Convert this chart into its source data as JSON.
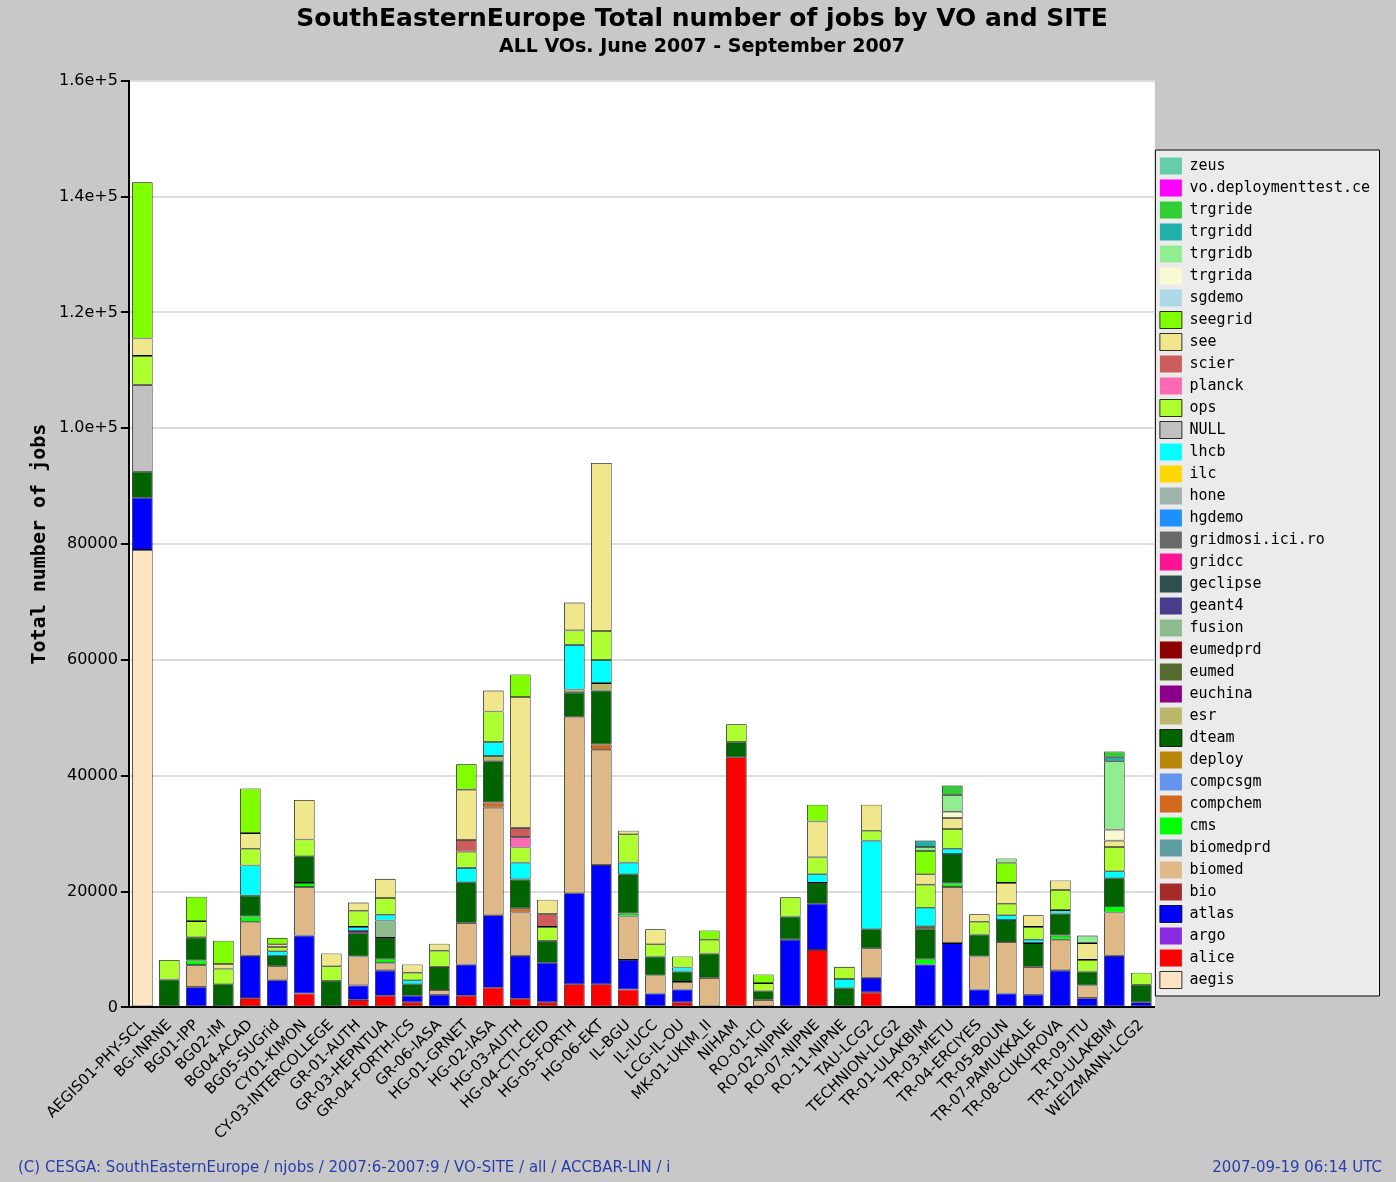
{
  "chart_data": {
    "type": "bar",
    "stacked": true,
    "title": "SouthEasternEurope Total number of jobs by VO and SITE",
    "subtitle": "ALL VOs. June 2007 - September 2007",
    "ylabel": "Total number of jobs",
    "categories": [
      "AEGIS01-PHY-SCL",
      "BG-INRNE",
      "BG01-IPP",
      "BG02-IM",
      "BG04-ACAD",
      "BG05-SUGrid",
      "CY01-KIMON",
      "CY-03-INTERCOLLEGE",
      "GR-01-AUTH",
      "GR-03-HEPNTUA",
      "GR-04-FORTH-ICS",
      "GR-06-IASA",
      "HG-01-GRNET",
      "HG-02-IASA",
      "HG-03-AUTH",
      "HG-04-CTI-CEID",
      "HG-05-FORTH",
      "HG-06-EKT",
      "IL-BGU",
      "IL-IUCC",
      "LCG-IL-OU",
      "MK-01-UKIM_II",
      "NIHAM",
      "RO-01-ICI",
      "RO-02-NIPNE",
      "RO-07-NIPNE",
      "RO-11-NIPNE",
      "TAU-LCG2",
      "TECHNION-LCG2",
      "TR-01-ULAKBIM",
      "TR-03-METU",
      "TR-04-ERCIYES",
      "TR-05-BOUN",
      "TR-07-PAMUKKALE",
      "TR-08-CUKUROVA",
      "TR-09-ITU",
      "TR-10-ULAKBIM",
      "WEIZMANN-LCG2"
    ],
    "series": [
      {
        "name": "aegis",
        "color": "#ffe4c4",
        "values": [
          79000,
          0,
          0,
          0,
          0,
          0,
          0,
          0,
          0,
          0,
          0,
          0,
          0,
          0,
          0,
          0,
          0,
          0,
          0,
          0,
          0,
          0,
          0,
          0,
          0,
          0,
          0,
          0,
          0,
          0,
          0,
          0,
          0,
          0,
          0,
          0,
          0,
          0
        ]
      },
      {
        "name": "alice",
        "color": "#ff0000",
        "values": [
          0,
          0,
          0,
          0,
          1600,
          0,
          2400,
          0,
          1300,
          2000,
          900,
          0,
          2000,
          3400,
          1500,
          900,
          4000,
          4000,
          3100,
          0,
          900,
          0,
          43200,
          0,
          0,
          9900,
          0,
          2600,
          0,
          0,
          0,
          0,
          0,
          0,
          0,
          0,
          0,
          0
        ]
      },
      {
        "name": "argo",
        "color": "#8a2be2",
        "values": [
          0,
          0,
          0,
          0,
          0,
          0,
          0,
          0,
          0,
          0,
          0,
          0,
          0,
          0,
          0,
          0,
          0,
          0,
          0,
          0,
          0,
          0,
          0,
          0,
          0,
          0,
          0,
          0,
          0,
          0,
          0,
          0,
          0,
          0,
          0,
          0,
          0,
          0
        ]
      },
      {
        "name": "atlas",
        "color": "#0000ff",
        "values": [
          9000,
          0,
          3500,
          0,
          7300,
          4700,
          10000,
          0,
          2500,
          4400,
          1100,
          2200,
          5400,
          12500,
          7400,
          6800,
          15700,
          20600,
          5100,
          2400,
          2200,
          0,
          0,
          0,
          11700,
          8000,
          0,
          2500,
          0,
          7400,
          11100,
          3100,
          2400,
          2200,
          6400,
          1600,
          8900,
          900
        ]
      },
      {
        "name": "bio",
        "color": "#a52a2a",
        "values": [
          0,
          0,
          0,
          0,
          0,
          0,
          0,
          0,
          0,
          0,
          0,
          0,
          0,
          0,
          0,
          0,
          0,
          0,
          0,
          0,
          0,
          0,
          0,
          0,
          0,
          0,
          0,
          0,
          0,
          0,
          0,
          0,
          0,
          0,
          0,
          0,
          0,
          0
        ]
      },
      {
        "name": "biomed",
        "color": "#deb887",
        "values": [
          0,
          0,
          3800,
          0,
          5900,
          2400,
          8400,
          0,
          5000,
          1300,
          0,
          800,
          7200,
          18600,
          7500,
          0,
          30500,
          19900,
          7500,
          3100,
          1300,
          5100,
          0,
          1300,
          0,
          0,
          0,
          5100,
          0,
          0,
          9700,
          5700,
          8900,
          4800,
          5300,
          2200,
          7500,
          0
        ]
      },
      {
        "name": "biomedprd",
        "color": "#5f9ea0",
        "values": [
          0,
          0,
          0,
          0,
          0,
          0,
          0,
          0,
          0,
          0,
          0,
          0,
          0,
          0,
          0,
          0,
          0,
          0,
          0,
          0,
          0,
          0,
          0,
          0,
          0,
          0,
          0,
          0,
          0,
          0,
          0,
          0,
          0,
          0,
          0,
          0,
          0,
          0
        ]
      },
      {
        "name": "cms",
        "color": "#00ff00",
        "values": [
          0,
          0,
          800,
          0,
          900,
          0,
          700,
          0,
          0,
          700,
          0,
          0,
          0,
          0,
          0,
          0,
          0,
          0,
          500,
          0,
          0,
          0,
          0,
          0,
          0,
          0,
          0,
          0,
          0,
          1000,
          600,
          0,
          0,
          0,
          700,
          0,
          1100,
          0
        ]
      },
      {
        "name": "compchem",
        "color": "#d2691e",
        "values": [
          0,
          0,
          0,
          0,
          0,
          0,
          0,
          0,
          0,
          0,
          0,
          0,
          0,
          900,
          700,
          0,
          0,
          900,
          0,
          0,
          0,
          0,
          0,
          0,
          0,
          0,
          0,
          0,
          0,
          0,
          0,
          0,
          0,
          0,
          0,
          0,
          0,
          0
        ]
      },
      {
        "name": "compcsgm",
        "color": "#6495ed",
        "values": [
          0,
          0,
          0,
          0,
          0,
          0,
          0,
          0,
          0,
          0,
          0,
          0,
          0,
          0,
          0,
          0,
          0,
          0,
          0,
          0,
          0,
          0,
          0,
          0,
          0,
          0,
          0,
          0,
          0,
          0,
          0,
          0,
          0,
          0,
          0,
          0,
          0,
          0
        ]
      },
      {
        "name": "deploy",
        "color": "#b8860b",
        "values": [
          0,
          0,
          0,
          0,
          0,
          0,
          0,
          0,
          0,
          0,
          0,
          0,
          0,
          0,
          0,
          0,
          0,
          0,
          0,
          0,
          0,
          0,
          0,
          0,
          0,
          0,
          0,
          0,
          0,
          0,
          0,
          0,
          0,
          0,
          0,
          0,
          0,
          0
        ]
      },
      {
        "name": "dteam",
        "color": "#006400",
        "values": [
          4500,
          4800,
          4000,
          4000,
          3600,
          1800,
          4600,
          4600,
          4000,
          3600,
          2000,
          4000,
          7000,
          7100,
          5000,
          3800,
          4200,
          9300,
          6800,
          3300,
          1800,
          4200,
          2600,
          1500,
          4000,
          3600,
          3300,
          3300,
          0,
          5100,
          5100,
          3800,
          3800,
          4100,
          3800,
          2400,
          4800,
          3000
        ]
      },
      {
        "name": "esr",
        "color": "#bdb76b",
        "values": [
          0,
          0,
          0,
          0,
          0,
          0,
          0,
          0,
          0,
          0,
          0,
          0,
          0,
          900,
          0,
          0,
          500,
          1300,
          0,
          0,
          0,
          0,
          0,
          0,
          0,
          0,
          0,
          0,
          0,
          0,
          0,
          0,
          0,
          0,
          0,
          0,
          0,
          0
        ]
      },
      {
        "name": "euchina",
        "color": "#8b008b",
        "values": [
          0,
          0,
          0,
          0,
          0,
          0,
          0,
          0,
          400,
          0,
          0,
          0,
          0,
          0,
          0,
          0,
          0,
          0,
          0,
          0,
          0,
          0,
          0,
          0,
          0,
          0,
          0,
          0,
          0,
          0,
          0,
          0,
          0,
          0,
          0,
          0,
          0,
          0
        ]
      },
      {
        "name": "eumed",
        "color": "#556b2f",
        "values": [
          0,
          0,
          0,
          0,
          0,
          0,
          0,
          0,
          0,
          0,
          0,
          0,
          0,
          0,
          0,
          0,
          0,
          0,
          0,
          0,
          0,
          0,
          0,
          0,
          0,
          0,
          0,
          0,
          0,
          500,
          0,
          0,
          0,
          0,
          0,
          0,
          0,
          0
        ]
      },
      {
        "name": "eumedprd",
        "color": "#8b0000",
        "values": [
          0,
          0,
          0,
          0,
          0,
          0,
          0,
          0,
          0,
          0,
          0,
          0,
          0,
          0,
          0,
          0,
          0,
          0,
          0,
          0,
          0,
          0,
          0,
          0,
          0,
          0,
          0,
          0,
          0,
          0,
          0,
          0,
          0,
          0,
          0,
          0,
          0,
          0
        ]
      },
      {
        "name": "fusion",
        "color": "#8fbc8f",
        "values": [
          0,
          0,
          0,
          0,
          0,
          0,
          0,
          0,
          0,
          3000,
          0,
          0,
          0,
          0,
          0,
          0,
          0,
          0,
          0,
          0,
          0,
          0,
          0,
          0,
          0,
          0,
          0,
          0,
          0,
          0,
          0,
          0,
          0,
          0,
          0,
          0,
          0,
          0
        ]
      },
      {
        "name": "geant4",
        "color": "#483d8b",
        "values": [
          0,
          0,
          0,
          0,
          0,
          0,
          0,
          0,
          0,
          0,
          0,
          0,
          0,
          0,
          0,
          0,
          0,
          0,
          0,
          0,
          0,
          0,
          0,
          0,
          0,
          0,
          0,
          0,
          0,
          0,
          0,
          0,
          0,
          0,
          0,
          0,
          0,
          0
        ]
      },
      {
        "name": "geclipse",
        "color": "#2f4f4f",
        "values": [
          0,
          0,
          0,
          0,
          0,
          0,
          0,
          0,
          0,
          0,
          0,
          0,
          0,
          0,
          0,
          0,
          0,
          0,
          0,
          0,
          0,
          0,
          0,
          0,
          0,
          0,
          0,
          0,
          0,
          0,
          0,
          0,
          0,
          0,
          0,
          0,
          0,
          0
        ]
      },
      {
        "name": "gridcc",
        "color": "#ff1493",
        "values": [
          0,
          0,
          0,
          0,
          0,
          0,
          0,
          0,
          0,
          0,
          0,
          0,
          0,
          0,
          0,
          0,
          0,
          0,
          0,
          0,
          0,
          0,
          0,
          0,
          0,
          0,
          0,
          0,
          0,
          0,
          0,
          0,
          0,
          0,
          0,
          0,
          0,
          0
        ]
      },
      {
        "name": "gridmosi.ici.ro",
        "color": "#696969",
        "values": [
          0,
          0,
          0,
          0,
          0,
          0,
          0,
          0,
          0,
          0,
          0,
          0,
          0,
          0,
          0,
          0,
          0,
          0,
          0,
          0,
          0,
          0,
          0,
          0,
          0,
          0,
          0,
          0,
          0,
          0,
          0,
          0,
          0,
          0,
          0,
          0,
          0,
          0
        ]
      },
      {
        "name": "hgdemo",
        "color": "#1e90ff",
        "values": [
          0,
          0,
          0,
          0,
          0,
          0,
          0,
          0,
          0,
          0,
          0,
          0,
          0,
          0,
          0,
          0,
          0,
          0,
          0,
          0,
          0,
          0,
          0,
          0,
          0,
          0,
          0,
          0,
          0,
          0,
          0,
          0,
          0,
          0,
          0,
          0,
          0,
          0
        ]
      },
      {
        "name": "hone",
        "color": "#9fb4aa",
        "values": [
          0,
          0,
          0,
          0,
          0,
          0,
          0,
          0,
          0,
          0,
          0,
          0,
          0,
          0,
          0,
          0,
          0,
          0,
          0,
          0,
          0,
          0,
          0,
          0,
          0,
          0,
          0,
          0,
          0,
          0,
          0,
          0,
          0,
          0,
          0,
          0,
          0,
          0
        ]
      },
      {
        "name": "ilc",
        "color": "#ffd700",
        "values": [
          0,
          0,
          0,
          0,
          0,
          0,
          0,
          0,
          0,
          0,
          0,
          0,
          0,
          0,
          0,
          0,
          0,
          0,
          0,
          0,
          0,
          0,
          0,
          0,
          0,
          0,
          0,
          0,
          0,
          0,
          0,
          0,
          0,
          0,
          0,
          0,
          0,
          0
        ]
      },
      {
        "name": "lhcb",
        "color": "#00ffff",
        "values": [
          0,
          0,
          0,
          0,
          5200,
          800,
          0,
          0,
          700,
          1000,
          700,
          0,
          2500,
          2400,
          2900,
          0,
          7700,
          4000,
          2000,
          0,
          700,
          0,
          0,
          0,
          0,
          1500,
          1600,
          15300,
          0,
          3200,
          900,
          0,
          800,
          600,
          600,
          0,
          1200,
          0
        ]
      },
      {
        "name": "NULL",
        "color": "#c0c0c0",
        "values": [
          15000,
          0,
          0,
          0,
          0,
          0,
          0,
          0,
          0,
          0,
          0,
          0,
          0,
          0,
          0,
          0,
          0,
          0,
          0,
          0,
          0,
          0,
          0,
          0,
          0,
          0,
          0,
          0,
          0,
          0,
          0,
          0,
          0,
          0,
          0,
          0,
          0,
          0
        ]
      },
      {
        "name": "ops",
        "color": "#adff2f",
        "values": [
          5000,
          3400,
          2800,
          2700,
          2900,
          700,
          2900,
          2500,
          2800,
          2900,
          1300,
          2800,
          2800,
          5300,
          2600,
          2400,
          2500,
          5000,
          4900,
          2100,
          1900,
          2400,
          3100,
          1400,
          3300,
          2900,
          2100,
          1700,
          0,
          4000,
          3400,
          2200,
          2000,
          2200,
          3500,
          2000,
          4200,
          2100
        ]
      },
      {
        "name": "planck",
        "color": "#ff69b4",
        "values": [
          0,
          0,
          0,
          0,
          0,
          0,
          0,
          0,
          0,
          0,
          0,
          0,
          0,
          0,
          1800,
          0,
          0,
          0,
          0,
          0,
          0,
          0,
          0,
          0,
          0,
          0,
          0,
          0,
          0,
          0,
          0,
          0,
          0,
          0,
          0,
          0,
          0,
          0
        ]
      },
      {
        "name": "scier",
        "color": "#cd5c5c",
        "values": [
          0,
          0,
          0,
          0,
          0,
          0,
          0,
          0,
          0,
          0,
          0,
          0,
          2000,
          0,
          1600,
          2200,
          0,
          0,
          0,
          0,
          0,
          0,
          0,
          0,
          0,
          0,
          0,
          0,
          0,
          0,
          0,
          0,
          0,
          0,
          0,
          0,
          0,
          0
        ]
      },
      {
        "name": "see",
        "color": "#f0e68c",
        "values": [
          3000,
          0,
          0,
          800,
          2700,
          500,
          6800,
          2200,
          1400,
          3300,
          1400,
          1200,
          8700,
          3600,
          22600,
          2500,
          4800,
          29000,
          600,
          2600,
          0,
          0,
          0,
          0,
          0,
          6200,
          0,
          4500,
          0,
          1800,
          1900,
          1300,
          3600,
          2000,
          1600,
          2900,
          1100,
          0
        ]
      },
      {
        "name": "seegrid",
        "color": "#7fff00",
        "values": [
          27000,
          0,
          4200,
          4000,
          7700,
          1100,
          0,
          0,
          0,
          0,
          0,
          0,
          4400,
          0,
          3900,
          0,
          0,
          0,
          0,
          0,
          0,
          1600,
          0,
          1500,
          0,
          2900,
          0,
          0,
          0,
          4000,
          0,
          0,
          3500,
          0,
          0,
          0,
          0,
          0
        ]
      },
      {
        "name": "sgdemo",
        "color": "#add8e6",
        "values": [
          0,
          0,
          0,
          0,
          0,
          0,
          0,
          0,
          0,
          0,
          0,
          0,
          0,
          0,
          0,
          0,
          0,
          0,
          0,
          0,
          0,
          0,
          0,
          0,
          0,
          0,
          0,
          0,
          0,
          0,
          0,
          0,
          0,
          0,
          0,
          0,
          0,
          0
        ]
      },
      {
        "name": "trgrida",
        "color": "#fafad2",
        "values": [
          0,
          0,
          0,
          0,
          0,
          0,
          0,
          0,
          0,
          0,
          0,
          0,
          0,
          0,
          0,
          0,
          0,
          0,
          0,
          0,
          0,
          0,
          0,
          0,
          0,
          0,
          0,
          0,
          0,
          0,
          1100,
          0,
          0,
          0,
          0,
          0,
          1900,
          0
        ]
      },
      {
        "name": "trgridb",
        "color": "#90ee90",
        "values": [
          0,
          0,
          0,
          0,
          0,
          0,
          0,
          0,
          0,
          0,
          0,
          0,
          0,
          0,
          0,
          0,
          0,
          0,
          0,
          0,
          0,
          0,
          0,
          0,
          0,
          0,
          0,
          0,
          0,
          700,
          2900,
          0,
          700,
          0,
          0,
          1300,
          11800,
          0
        ]
      },
      {
        "name": "trgridd",
        "color": "#20b2aa",
        "values": [
          0,
          0,
          0,
          0,
          0,
          0,
          0,
          0,
          0,
          0,
          0,
          0,
          0,
          0,
          0,
          0,
          0,
          0,
          0,
          0,
          0,
          0,
          0,
          0,
          0,
          0,
          0,
          0,
          0,
          1100,
          0,
          0,
          0,
          0,
          0,
          0,
          700,
          0
        ]
      },
      {
        "name": "trgride",
        "color": "#32cd32",
        "values": [
          0,
          0,
          0,
          0,
          0,
          0,
          0,
          0,
          0,
          0,
          0,
          0,
          0,
          0,
          0,
          0,
          0,
          0,
          0,
          0,
          0,
          0,
          0,
          0,
          0,
          0,
          0,
          0,
          0,
          0,
          1600,
          0,
          0,
          0,
          0,
          0,
          1000,
          0
        ]
      },
      {
        "name": "vo.deploymenttest.ce",
        "color": "#ff00ff",
        "values": [
          0,
          0,
          0,
          0,
          0,
          0,
          0,
          0,
          0,
          0,
          0,
          0,
          0,
          0,
          0,
          0,
          0,
          0,
          0,
          0,
          0,
          0,
          0,
          0,
          0,
          0,
          0,
          0,
          0,
          0,
          0,
          0,
          0,
          0,
          0,
          0,
          0,
          0
        ]
      },
      {
        "name": "zeus",
        "color": "#66cdaa",
        "values": [
          0,
          0,
          0,
          0,
          0,
          0,
          0,
          0,
          0,
          0,
          0,
          0,
          0,
          0,
          0,
          0,
          0,
          0,
          0,
          0,
          0,
          0,
          0,
          0,
          0,
          0,
          0,
          0,
          0,
          0,
          0,
          0,
          0,
          0,
          0,
          0,
          0,
          0
        ]
      }
    ],
    "ylim": [
      0,
      160000
    ],
    "yticks": [
      0,
      20000,
      40000,
      60000,
      80000,
      {
        "value": 100000,
        "label": "1.0e+5"
      },
      {
        "value": 120000,
        "label": "1.2e+5"
      },
      {
        "value": 140000,
        "label": "1.4e+5"
      },
      {
        "value": 160000,
        "label": "1.6e+5"
      }
    ],
    "grid": "y",
    "legend": "right",
    "annotations": [
      "(C) CESGA: SouthEasternEurope / njobs / 2007:6-2007:9 / VO-SITE / all / ACCBAR-LIN / i",
      "2007-09-19 06:14 UTC"
    ]
  }
}
